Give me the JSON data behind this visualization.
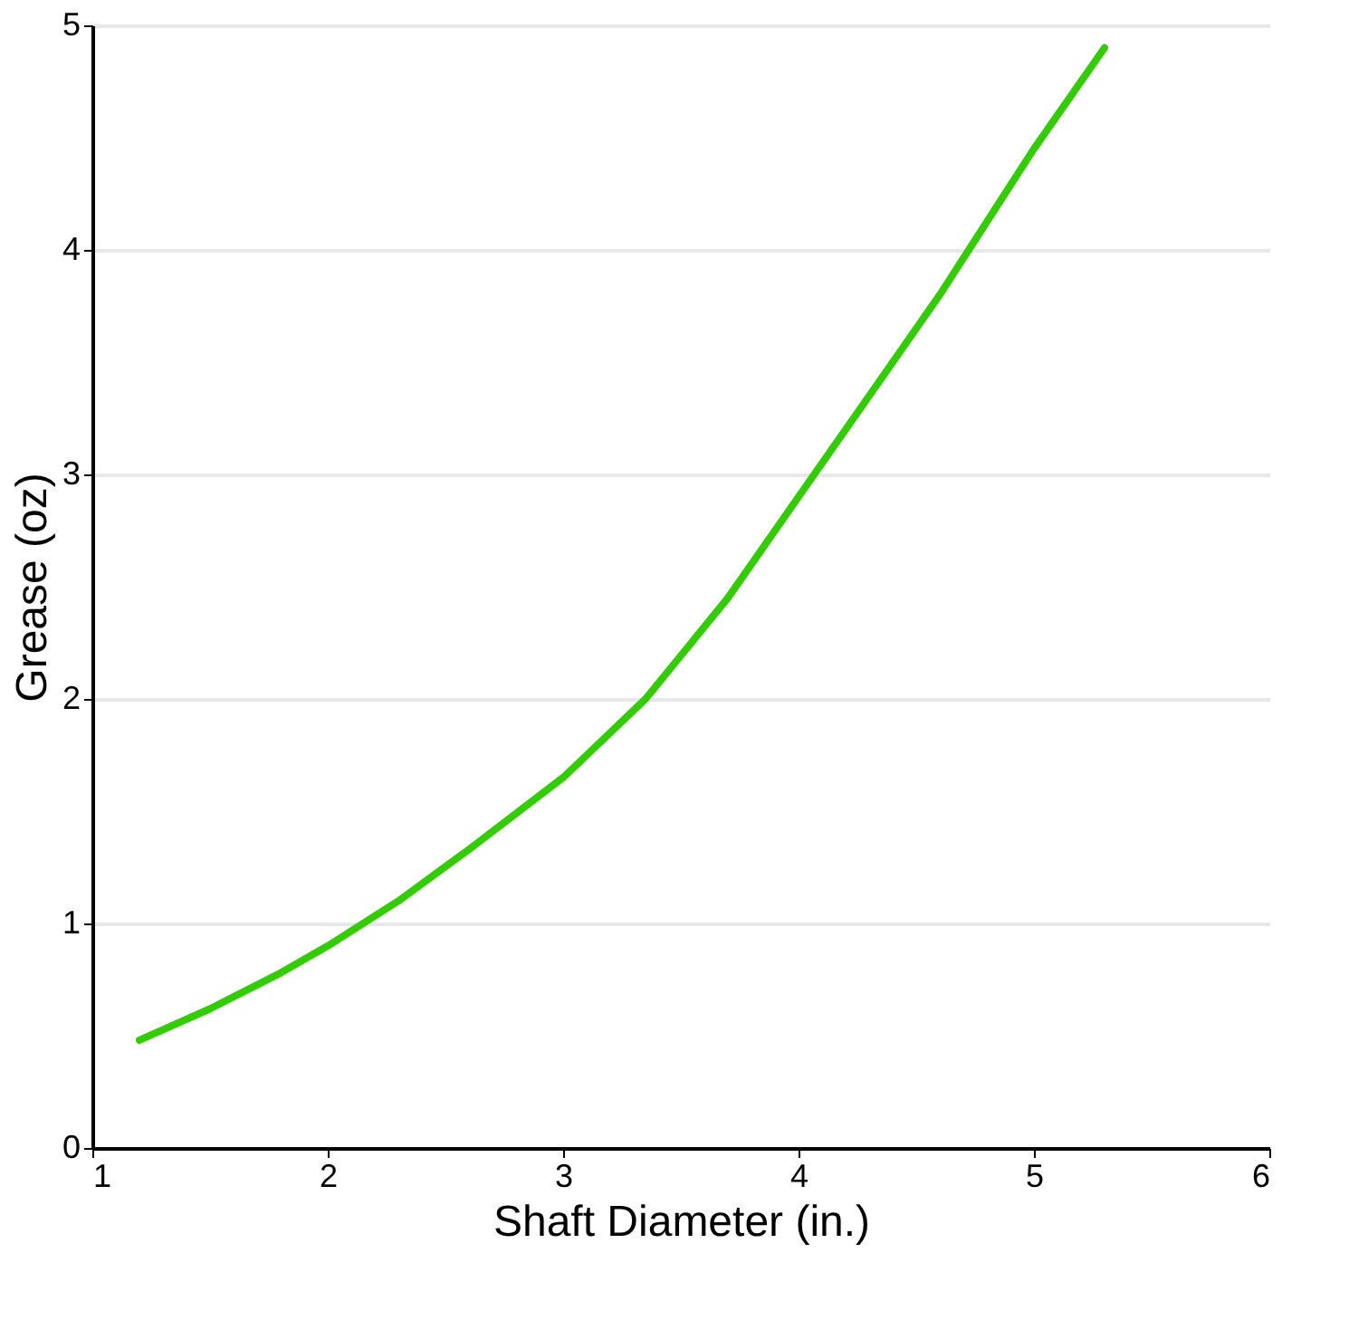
{
  "chart_data": {
    "type": "line",
    "xlabel": "Shaft Diameter (in.)",
    "ylabel": "Grease (oz)",
    "x": [
      1.2,
      1.5,
      1.8,
      2.0,
      2.3,
      2.6,
      3.0,
      3.35,
      3.7,
      4.0,
      4.3,
      4.6,
      5.0,
      5.3
    ],
    "series": [
      {
        "color": "#33cc00",
        "values": [
          0.48,
          0.62,
          0.78,
          0.9,
          1.1,
          1.33,
          1.65,
          2.0,
          2.45,
          2.9,
          3.35,
          3.8,
          4.45,
          4.9
        ]
      }
    ],
    "xlim": [
      1,
      6
    ],
    "xticks": [
      1,
      2,
      3,
      4,
      5,
      6
    ],
    "ylim": [
      0,
      5
    ],
    "yticks": [
      0,
      1,
      2,
      3,
      4,
      5
    ],
    "grid": "y",
    "line_style": "solid",
    "marker": "none"
  }
}
